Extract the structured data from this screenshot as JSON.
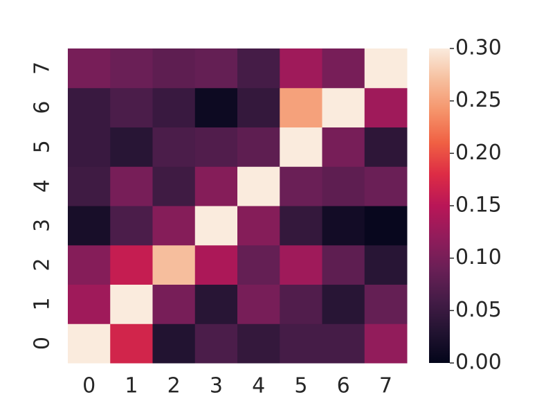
{
  "chart_data": {
    "type": "heatmap",
    "x": [
      "0",
      "1",
      "2",
      "3",
      "4",
      "5",
      "6",
      "7"
    ],
    "y": [
      "0",
      "1",
      "2",
      "3",
      "4",
      "5",
      "6",
      "7"
    ],
    "z": [
      [
        1.0,
        0.17,
        0.03,
        0.065,
        0.045,
        0.06,
        0.06,
        0.12
      ],
      [
        0.13,
        1.0,
        0.1,
        0.035,
        0.1,
        0.07,
        0.035,
        0.085
      ],
      [
        0.11,
        0.16,
        0.27,
        0.14,
        0.085,
        0.13,
        0.08,
        0.035
      ],
      [
        0.02,
        0.065,
        0.11,
        1.0,
        0.11,
        0.045,
        0.015,
        0.005
      ],
      [
        0.055,
        0.1,
        0.055,
        0.11,
        1.0,
        0.09,
        0.08,
        0.09
      ],
      [
        0.05,
        0.035,
        0.065,
        0.07,
        0.08,
        1.0,
        0.1,
        0.04
      ],
      [
        0.05,
        0.065,
        0.05,
        0.01,
        0.045,
        0.25,
        1.0,
        0.13
      ],
      [
        0.1,
        0.09,
        0.08,
        0.085,
        0.06,
        0.13,
        0.1,
        1.0
      ]
    ],
    "colorbar_lim": [
      0,
      0.3
    ],
    "colorbar_ticks": [
      {
        "value": 0,
        "label": "0.00"
      },
      {
        "value": 0.05,
        "label": "0.05"
      },
      {
        "value": 0.1,
        "label": "0.10"
      },
      {
        "value": 0.15,
        "label": "0.15"
      },
      {
        "value": 0.2,
        "label": "0.20"
      },
      {
        "value": 0.25,
        "label": "0.25"
      },
      {
        "value": 0.3,
        "label": "0.30"
      }
    ],
    "colormap": [
      "#03051a",
      "#221331",
      "#451c47",
      "#6a1f56",
      "#921c5b",
      "#b91657",
      "#dd2c45",
      "#f06043",
      "#f5936a",
      "#f6be9d",
      "#faebdd"
    ]
  }
}
